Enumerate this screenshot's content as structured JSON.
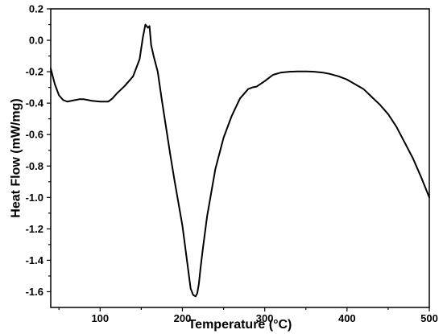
{
  "chart_data": {
    "type": "line",
    "title": "",
    "xlabel": "Temperature (°C)",
    "ylabel": "Heat Flow (mW/mg)",
    "xlim": [
      40,
      500
    ],
    "ylim": [
      -1.7,
      0.2
    ],
    "xticks": [
      100,
      200,
      300,
      400,
      500
    ],
    "yticks": [
      0.2,
      0.0,
      -0.2,
      -0.4,
      -0.6,
      -0.8,
      -1.0,
      -1.2,
      -1.4,
      -1.6
    ],
    "ytick_labels": [
      "0.2",
      "0.0",
      "-0.2",
      "-0.4",
      "-0.6",
      "-0.8",
      "-1.0",
      "-1.2",
      "-1.4",
      "-1.6"
    ],
    "grid": false,
    "legend": "none",
    "line_color": "#000000",
    "series": [
      {
        "x": [
          40,
          45,
          50,
          55,
          60,
          65,
          70,
          75,
          80,
          90,
          100,
          110,
          115,
          120,
          130,
          140,
          148,
          152,
          155,
          158,
          160,
          162,
          165,
          170,
          175,
          180,
          185,
          190,
          195,
          200,
          205,
          210,
          213,
          216,
          218,
          220,
          222,
          225,
          230,
          240,
          250,
          260,
          270,
          280,
          285,
          290,
          300,
          310,
          320,
          330,
          340,
          350,
          360,
          370,
          380,
          390,
          400,
          410,
          420,
          430,
          440,
          450,
          460,
          470,
          480,
          490,
          500
        ],
        "y": [
          -0.18,
          -0.28,
          -0.35,
          -0.38,
          -0.39,
          -0.385,
          -0.38,
          -0.375,
          -0.375,
          -0.385,
          -0.39,
          -0.39,
          -0.37,
          -0.34,
          -0.29,
          -0.23,
          -0.12,
          0.02,
          0.1,
          0.08,
          0.09,
          -0.03,
          -0.1,
          -0.2,
          -0.38,
          -0.55,
          -0.72,
          -0.88,
          -1.03,
          -1.18,
          -1.38,
          -1.58,
          -1.62,
          -1.63,
          -1.61,
          -1.55,
          -1.45,
          -1.32,
          -1.12,
          -0.82,
          -0.62,
          -0.48,
          -0.37,
          -0.31,
          -0.3,
          -0.295,
          -0.26,
          -0.22,
          -0.205,
          -0.2,
          -0.198,
          -0.198,
          -0.2,
          -0.205,
          -0.215,
          -0.23,
          -0.25,
          -0.28,
          -0.31,
          -0.36,
          -0.41,
          -0.47,
          -0.55,
          -0.65,
          -0.75,
          -0.87,
          -1.0
        ]
      }
    ]
  }
}
